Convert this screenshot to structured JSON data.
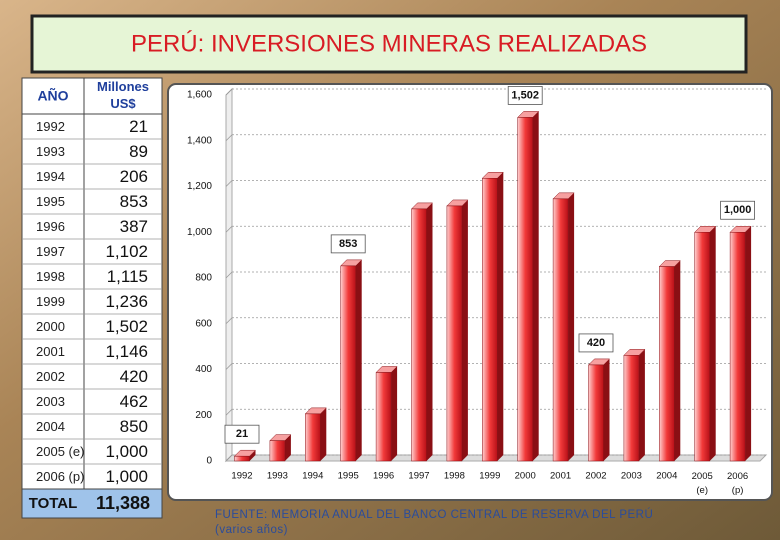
{
  "title": "PERÚ: INVERSIONES MINERAS REALIZADAS",
  "table": {
    "header": [
      "AÑO",
      "Millones US$"
    ],
    "rows": [
      [
        "1992",
        "21"
      ],
      [
        "1993",
        "89"
      ],
      [
        "1994",
        "206"
      ],
      [
        "1995",
        "853"
      ],
      [
        "1996",
        "387"
      ],
      [
        "1997",
        "1,102"
      ],
      [
        "1998",
        "1,115"
      ],
      [
        "1999",
        "1,236"
      ],
      [
        "2000",
        "1,502"
      ],
      [
        "2001",
        "1,146"
      ],
      [
        "2002",
        "420"
      ],
      [
        "2003",
        "462"
      ],
      [
        "2004",
        "850"
      ],
      [
        "2005 (e)",
        "1,000"
      ],
      [
        "2006 (p)",
        "1,000"
      ]
    ],
    "total": [
      "TOTAL",
      "11,388"
    ]
  },
  "chart_data": {
    "type": "bar",
    "categories": [
      "1992",
      "1993",
      "1994",
      "1995",
      "1996",
      "1997",
      "1998",
      "1999",
      "2000",
      "2001",
      "2002",
      "2003",
      "2004",
      "2005 (e)",
      "2006 (p)"
    ],
    "values": [
      21,
      89,
      206,
      853,
      387,
      1102,
      1115,
      1236,
      1502,
      1146,
      420,
      462,
      850,
      1000,
      1000
    ],
    "value_labels": [
      "21",
      null,
      null,
      "853",
      null,
      null,
      null,
      null,
      "1,502",
      null,
      "420",
      null,
      null,
      null,
      "1,000"
    ],
    "color": "#e8232a",
    "ylim": [
      0,
      1600
    ],
    "yticks": [
      0,
      200,
      400,
      600,
      800,
      {
        "value": 1000,
        "label": "1,000"
      },
      {
        "value": 1200,
        "label": "1,200"
      },
      {
        "value": 1400,
        "label": "1,400"
      },
      {
        "value": 1600,
        "label": "1,600"
      }
    ],
    "grid": true
  },
  "source": "FUENTE: MEMORIA ANUAL DEL BANCO CENTRAL DE RESERVA DEL PERÚ (varios años)"
}
